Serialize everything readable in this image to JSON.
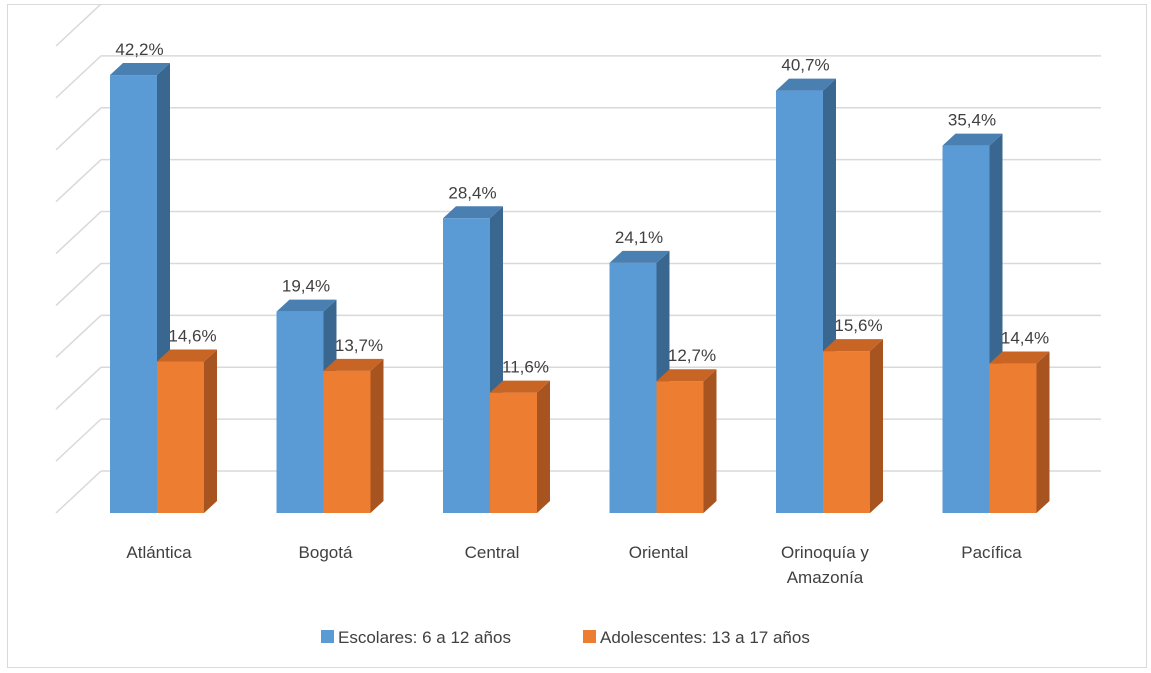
{
  "chart_data": {
    "type": "bar",
    "style": "3d-clustered-column",
    "categories": [
      [
        "Atlántica"
      ],
      [
        "Bogotá"
      ],
      [
        "Central"
      ],
      [
        "Oriental"
      ],
      [
        "Orinoquía y",
        "Amazonía"
      ],
      [
        "Pacífica"
      ]
    ],
    "series": [
      {
        "name": "Escolares: 6 a 12 años",
        "values": [
          42.2,
          19.4,
          28.4,
          24.1,
          40.7,
          35.4
        ],
        "labels": [
          "42,2%",
          "19,4%",
          "28,4%",
          "24,1%",
          "40,7%",
          "35,4%"
        ],
        "color": "#5b9bd5",
        "side_color": "#3a6790",
        "top_color": "#4a7fb1"
      },
      {
        "name": "Adolescentes: 13 a 17 años",
        "values": [
          14.6,
          13.7,
          11.6,
          12.7,
          15.6,
          14.4
        ],
        "labels": [
          "14,6%",
          "13,7%",
          "11,6%",
          "12,7%",
          "15,6%",
          "14,4%"
        ],
        "color": "#ed7d31",
        "side_color": "#a85420",
        "top_color": "#c86525"
      }
    ],
    "ylim": [
      0,
      45
    ],
    "gridlines": true,
    "legend_position": "bottom",
    "data_labels": true,
    "value_axis_labels": false,
    "gridline_color": "#d9d9d9",
    "text_color": "#404040"
  }
}
